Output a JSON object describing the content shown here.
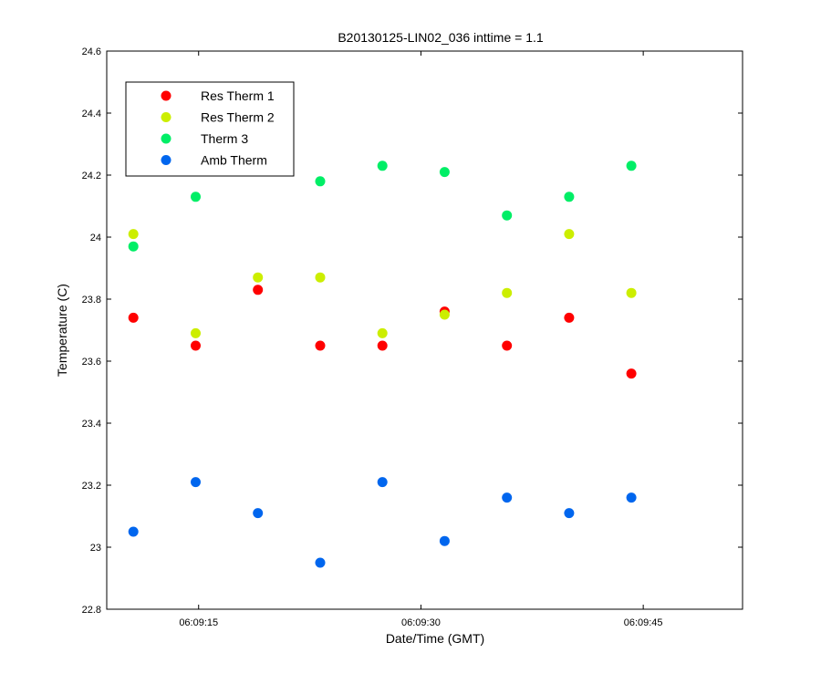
{
  "chart_data": {
    "type": "scatter",
    "title": "B20130125-LIN02_036 inttime = 1.1",
    "xlabel": "Date/Time (GMT)",
    "ylabel": "Temperature (C)",
    "ylim": [
      22.8,
      24.6
    ],
    "yticks": [
      "22.8",
      "23",
      "23.2",
      "23.4",
      "23.6",
      "23.8",
      "24",
      "24.2",
      "24.4",
      "24.6"
    ],
    "xlim": [
      "06:09:08.8",
      "06:09:51.7"
    ],
    "xticks": [
      "06:09:15",
      "06:09:30",
      "06:09:45"
    ],
    "grid": false,
    "legend_position": "top-left",
    "x": [
      "06:09:10.6",
      "06:09:14.8",
      "06:09:19.0",
      "06:09:23.2",
      "06:09:27.4",
      "06:09:31.6",
      "06:09:35.8",
      "06:09:40.0",
      "06:09:44.2"
    ],
    "series": [
      {
        "name": "Res Therm 1",
        "color": "#ff0000",
        "values": [
          23.74,
          23.65,
          23.83,
          23.65,
          23.65,
          23.76,
          23.65,
          23.74,
          23.56
        ]
      },
      {
        "name": "Res Therm 2",
        "color": "#ccee00",
        "values": [
          24.01,
          23.69,
          23.87,
          23.87,
          23.69,
          23.75,
          23.82,
          24.01,
          23.82
        ]
      },
      {
        "name": "Therm 3",
        "color": "#00ee66",
        "values": [
          23.97,
          24.13,
          null,
          24.18,
          24.23,
          24.21,
          24.07,
          24.13,
          24.23
        ]
      },
      {
        "name": "Amb Therm",
        "color": "#0066ee",
        "values": [
          23.05,
          23.21,
          23.11,
          22.95,
          23.21,
          23.02,
          23.16,
          23.11,
          23.16
        ]
      }
    ]
  }
}
